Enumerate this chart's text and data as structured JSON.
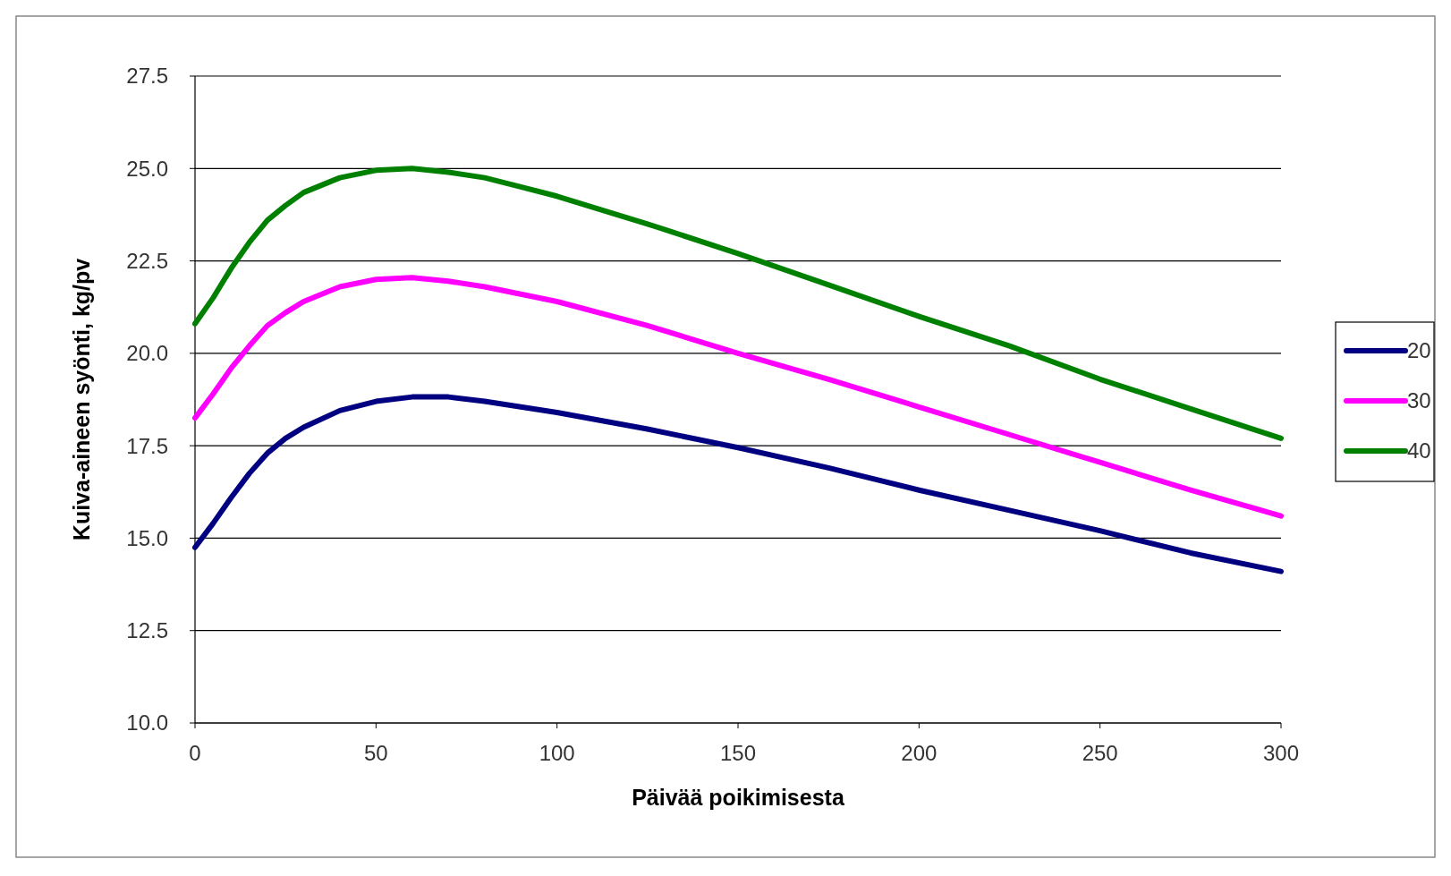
{
  "chart_data": {
    "type": "line",
    "xlabel": "Päivää poikimisesta",
    "ylabel": "Kuiva-aineen syönti, kg/pv",
    "x": [
      0,
      5,
      10,
      15,
      20,
      25,
      30,
      40,
      50,
      60,
      70,
      80,
      90,
      100,
      125,
      150,
      175,
      200,
      225,
      250,
      275,
      300
    ],
    "series": [
      {
        "name": "20",
        "color": "#000080",
        "values": [
          14.75,
          15.4,
          16.1,
          16.75,
          17.3,
          17.7,
          18.0,
          18.45,
          18.7,
          18.82,
          18.82,
          18.7,
          18.55,
          18.4,
          17.95,
          17.45,
          16.9,
          16.3,
          15.75,
          15.2,
          14.6,
          14.1
        ]
      },
      {
        "name": "30",
        "color": "#ff00ff",
        "values": [
          18.25,
          18.9,
          19.6,
          20.2,
          20.75,
          21.1,
          21.4,
          21.8,
          22.0,
          22.05,
          21.95,
          21.8,
          21.6,
          21.4,
          20.75,
          20.0,
          19.3,
          18.55,
          17.8,
          17.05,
          16.3,
          15.6
        ]
      },
      {
        "name": "40",
        "color": "#008000",
        "values": [
          20.8,
          21.5,
          22.3,
          23.0,
          23.6,
          24.0,
          24.35,
          24.75,
          24.95,
          25.0,
          24.9,
          24.75,
          24.5,
          24.25,
          23.5,
          22.7,
          21.85,
          21.0,
          20.2,
          19.3,
          18.5,
          17.7
        ]
      }
    ],
    "xlim": [
      0,
      300
    ],
    "xticks": [
      0,
      50,
      100,
      150,
      200,
      250,
      300
    ],
    "ylim": [
      10,
      27.5
    ],
    "yticks": [
      {
        "value": 10,
        "label": "10.0"
      },
      {
        "value": 12.5,
        "label": "12.5"
      },
      {
        "value": 15,
        "label": "15.0"
      },
      {
        "value": 17.5,
        "label": "17.5"
      },
      {
        "value": 20,
        "label": "20.0"
      },
      {
        "value": 22.5,
        "label": "22.5"
      },
      {
        "value": 25,
        "label": "25.0"
      },
      {
        "value": 27.5,
        "label": "27.5"
      }
    ],
    "grid": "y",
    "legend": "right",
    "marker": "none",
    "line_style": "solid"
  }
}
